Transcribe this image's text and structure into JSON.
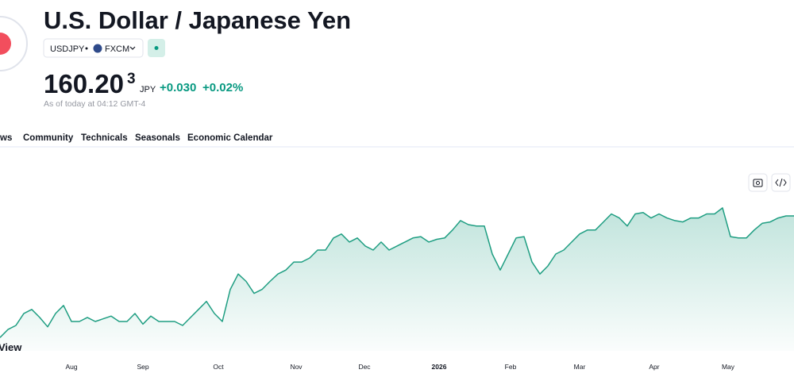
{
  "header": {
    "title": "U.S. Dollar / Japanese Yen",
    "symbol": "USDJPY",
    "exchange": "FXCM",
    "price": "160.20",
    "price_sup": "3",
    "currency": "JPY",
    "change": "+0.030",
    "change_percent": "+0.02%",
    "timestamp": "As of today at 04:12 GMT-4"
  },
  "tabs": [
    "ws",
    "Community",
    "Technicals",
    "Seasonals",
    "Economic Calendar"
  ],
  "chart_data": {
    "type": "area",
    "watermark": "View",
    "color": "#1f9e82",
    "xlim": [
      0,
      100
    ],
    "ylim": [
      140,
      169
    ],
    "xticks": [
      {
        "value": 9,
        "label": "Aug"
      },
      {
        "value": 18,
        "label": "Sep"
      },
      {
        "value": 27.5,
        "label": "Oct"
      },
      {
        "value": 37.3,
        "label": "Nov"
      },
      {
        "value": 45.9,
        "label": "Dec"
      },
      {
        "value": 55.3,
        "label": "2026"
      },
      {
        "value": 64.3,
        "label": "Feb"
      },
      {
        "value": 73,
        "label": "Mar"
      },
      {
        "value": 82.4,
        "label": "Apr"
      },
      {
        "value": 91.7,
        "label": "May"
      }
    ],
    "values": [
      142.0,
      143.2,
      143.8,
      145.6,
      146.2,
      145.0,
      143.6,
      145.6,
      146.8,
      144.4,
      144.4,
      145.0,
      144.4,
      144.8,
      145.2,
      144.4,
      144.4,
      145.6,
      144.0,
      145.2,
      144.4,
      144.4,
      144.4,
      143.8,
      145.0,
      146.2,
      147.4,
      145.6,
      144.4,
      149.2,
      151.5,
      150.4,
      148.6,
      149.2,
      150.4,
      151.5,
      152.1,
      153.3,
      153.3,
      153.9,
      155.1,
      155.1,
      156.9,
      157.5,
      156.3,
      156.9,
      155.7,
      155.1,
      156.3,
      155.1,
      155.7,
      156.3,
      156.9,
      157.1,
      156.3,
      156.7,
      156.9,
      158.1,
      159.5,
      158.9,
      158.7,
      158.7,
      154.5,
      152.1,
      154.5,
      156.9,
      157.1,
      153.3,
      151.5,
      152.7,
      154.5,
      155.1,
      156.3,
      157.5,
      158.1,
      158.1,
      159.3,
      160.5,
      159.9,
      158.7,
      160.5,
      160.7,
      159.9,
      160.5,
      159.9,
      159.5,
      159.3,
      159.9,
      159.9,
      160.5,
      160.5,
      161.4,
      157.1,
      156.9,
      156.9,
      158.1,
      159.1,
      159.3,
      159.9,
      160.2,
      160.2
    ]
  }
}
